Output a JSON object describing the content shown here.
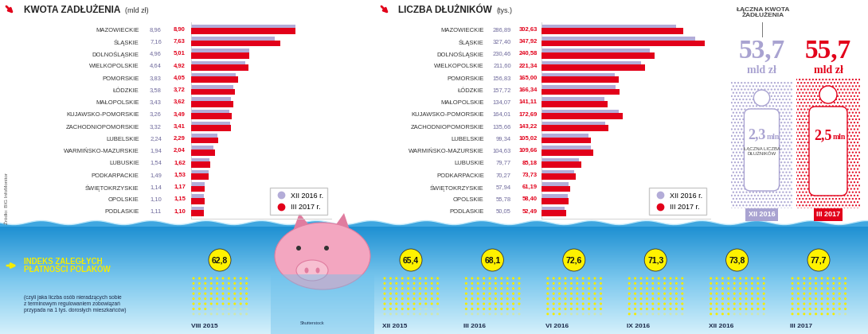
{
  "source": "Źródło: BIG InfoMonitor",
  "credit": "Shutterstock",
  "chart_data": [
    {
      "type": "bar",
      "orientation": "horizontal",
      "title": "KWOTA ZADŁUŻENIA",
      "subtitle": "(mld zł)",
      "categories": [
        "MAZOWIECKIE",
        "ŚLĄSKIE",
        "DOLNOŚLĄSKIE",
        "WIELKOPOLSKIE",
        "POMORSKIE",
        "ŁÓDZKIE",
        "MAŁOPOLSKIE",
        "KUJAWSKO-POMORSKIE",
        "ZACHODNIOPOMORSKIE",
        "LUBELSKIE",
        "WARMIŃSKO-MAZURSKIE",
        "LUBUSKIE",
        "PODKARPACKIE",
        "ŚWIĘTOKRZYSKIE",
        "OPOLSKIE",
        "PODLASKIE"
      ],
      "series": [
        {
          "name": "XII 2016 r.",
          "color": "#b3acd8",
          "values": [
            8.96,
            7.16,
            4.96,
            4.64,
            3.83,
            3.58,
            3.43,
            3.26,
            3.32,
            2.24,
            1.94,
            1.54,
            1.49,
            1.14,
            1.1,
            1.11
          ],
          "value_labels": [
            "8,96",
            "7,16",
            "4,96",
            "4,64",
            "3,83",
            "3,58",
            "3,43",
            "3,26",
            "3,32",
            "2,24",
            "1,94",
            "1,54",
            "1,49",
            "1,14",
            "1,10",
            "1,11"
          ]
        },
        {
          "name": "III 2017 r.",
          "color": "#e2001a",
          "values": [
            8.9,
            7.63,
            5.01,
            4.92,
            4.05,
            3.72,
            3.62,
            3.49,
            3.41,
            2.29,
            2.04,
            1.62,
            1.53,
            1.17,
            1.15,
            1.1
          ],
          "value_labels": [
            "8,90",
            "7,63",
            "5,01",
            "4,92",
            "4,05",
            "3,72",
            "3,62",
            "3,49",
            "3,41",
            "2,29",
            "2,04",
            "1,62",
            "1,53",
            "1,17",
            "1,15",
            "1,10"
          ]
        }
      ],
      "xlim": [
        0,
        12
      ],
      "data_labels": true,
      "legend": "lower right",
      "tick_labels": "y"
    },
    {
      "type": "bar",
      "orientation": "horizontal",
      "title": "LICZBA DŁUŻNIKÓW",
      "subtitle": "(tys.)",
      "categories": [
        "MAZOWIECKIE",
        "ŚLĄSKIE",
        "DOLNOŚLĄSKIE",
        "WIELKOPOLSKIE",
        "POMORSKIE",
        "ŁÓDZKIE",
        "MAŁOPOLSKIE",
        "KUJAWSKO-POMORSKIE",
        "ZACHODNIOPOMORSKIE",
        "LUBELSKIE",
        "WARMIŃSKO-MAZURSKIE",
        "LUBUSKIE",
        "PODKARPACKIE",
        "ŚWIĘTOKRZYSKIE",
        "OPOLSKIE",
        "PODLASKIE"
      ],
      "series": [
        {
          "name": "XII 2016 r.",
          "color": "#b3acd8",
          "values": [
            286.89,
            327.4,
            230.46,
            211.6,
            156.83,
            157.72,
            134.07,
            164.01,
            135.66,
            99.34,
            104.63,
            79.77,
            70.27,
            57.94,
            55.78,
            50.05
          ],
          "value_labels": [
            "286,89",
            "327,40",
            "230,46",
            "211,60",
            "156,83",
            "157,72",
            "134,07",
            "164,01",
            "135,66",
            "99,34",
            "104,63",
            "79,77",
            "70,27",
            "57,94",
            "55,78",
            "50,05"
          ]
        },
        {
          "name": "III 2017 r.",
          "color": "#e2001a",
          "values": [
            302.63,
            347.92,
            240.58,
            221.34,
            165.0,
            166.34,
            141.11,
            172.69,
            143.22,
            105.02,
            109.66,
            85.18,
            73.73,
            61.19,
            58.4,
            52.49
          ],
          "value_labels": [
            "302,63",
            "347,92",
            "240,58",
            "221,34",
            "165,00",
            "166,34",
            "141,11",
            "172,69",
            "143,22",
            "105,02",
            "109,66",
            "85,18",
            "73,73",
            "61,19",
            "58,40",
            "52,49"
          ]
        }
      ],
      "xlim": [
        0,
        360
      ],
      "data_labels": true,
      "legend": "lower right",
      "tick_labels": "y"
    },
    {
      "type": "pictogram",
      "title": "INDEKS ZALEGŁYCH\nPŁATNOŚCI POLAKÓW",
      "subtitle": "(czyli jaka liczba osób nieradzących sobie\nz terminowym regulowaniem zobowiązań\nprzypada na 1 tys. dorosłych mieszkańców)",
      "categories": [
        "VIII 2015",
        "XII 2015",
        "III 2016",
        "VI 2016",
        "IX 2016",
        "XII 2016",
        "III 2017"
      ],
      "values": [
        62.8,
        65.4,
        68.1,
        72.6,
        71.3,
        73.8,
        77.7
      ],
      "value_labels": [
        "62,8",
        "65,4",
        "68,1",
        "72,6",
        "71,3",
        "73,8",
        "77,7"
      ],
      "color": "#f5ec00",
      "data_labels": true
    }
  ],
  "summary": {
    "title": "ŁĄCZNA KWOTA\nZADŁUŻENIA",
    "debtors_title": "ŁĄCZNA LICZBA\nDŁUŻNIKÓW",
    "periods": [
      {
        "name": "XII 2016",
        "color": "#a9a3d1",
        "debt": 53.7,
        "debt_label": "53,7",
        "debt_unit": "mld zł",
        "debtors": 2.3,
        "debtors_label": "2,3",
        "debtors_unit": "mln"
      },
      {
        "name": "III 2017",
        "color": "#e2001a",
        "debt": 55.7,
        "debt_label": "55,7",
        "debt_unit": "mld zł",
        "debtors": 2.5,
        "debtors_label": "2,5",
        "debtors_unit": "mln"
      }
    ]
  }
}
